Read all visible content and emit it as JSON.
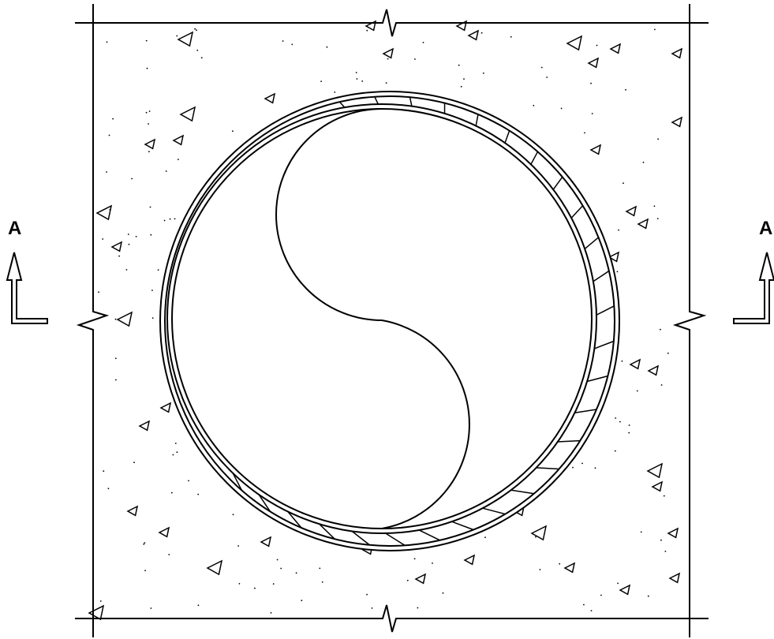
{
  "section_marker": {
    "left_label": "A",
    "right_label": "A"
  },
  "colors": {
    "line": "#000000",
    "background": "#ffffff"
  }
}
